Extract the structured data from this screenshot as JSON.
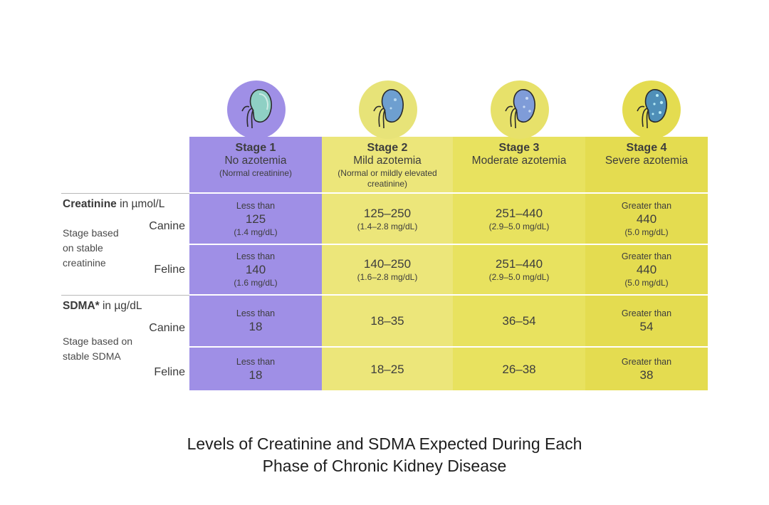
{
  "colors": {
    "stage1": "#9f8fe6",
    "stage2": "#ece67a",
    "stage3": "#e8e25f",
    "stage4": "#e4dc50",
    "stage1_badge": "#9f8fe6",
    "stage2_badge": "#e7e378",
    "stage3_badge": "#e7e16a",
    "stage4_badge": "#e4dc50"
  },
  "icons": [
    "kidney-icon",
    "kidney-icon",
    "kidney-icon",
    "kidney-icon"
  ],
  "chart_data": {
    "type": "table",
    "stages": [
      {
        "title": "Stage 1",
        "subtitle": "No azotemia",
        "note": "(Normal creatinine)"
      },
      {
        "title": "Stage 2",
        "subtitle": "Mild azotemia",
        "note": "(Normal or mildly elevated creatinine)"
      },
      {
        "title": "Stage 3",
        "subtitle": "Moderate azotemia",
        "note": ""
      },
      {
        "title": "Stage 4",
        "subtitle": "Severe azotemia",
        "note": ""
      }
    ],
    "sections": [
      {
        "name": "Creatinine",
        "unit": "in µmol/L",
        "description_lines": [
          "Stage based",
          "on stable",
          "creatinine"
        ],
        "rows": [
          {
            "species": "Canine",
            "cells": [
              {
                "prefix": "Less than",
                "value": "125",
                "mg": "(1.4 mg/dL)"
              },
              {
                "prefix": "",
                "value": "125–250",
                "mg": "(1.4–2.8 mg/dL)"
              },
              {
                "prefix": "",
                "value": "251–440",
                "mg": "(2.9–5.0 mg/dL)"
              },
              {
                "prefix": "Greater than",
                "value": "440",
                "mg": "(5.0 mg/dL)"
              }
            ]
          },
          {
            "species": "Feline",
            "cells": [
              {
                "prefix": "Less than",
                "value": "140",
                "mg": "(1.6 mg/dL)"
              },
              {
                "prefix": "",
                "value": "140–250",
                "mg": "(1.6–2.8 mg/dL)"
              },
              {
                "prefix": "",
                "value": "251–440",
                "mg": "(2.9–5.0 mg/dL)"
              },
              {
                "prefix": "Greater than",
                "value": "440",
                "mg": "(5.0 mg/dL)"
              }
            ]
          }
        ]
      },
      {
        "name": "SDMA*",
        "unit": "in µg/dL",
        "description_lines": [
          "Stage based on",
          "stable SDMA"
        ],
        "rows": [
          {
            "species": "Canine",
            "cells": [
              {
                "prefix": "Less than",
                "value": "18",
                "mg": ""
              },
              {
                "prefix": "",
                "value": "18–35",
                "mg": ""
              },
              {
                "prefix": "",
                "value": "36–54",
                "mg": ""
              },
              {
                "prefix": "Greater than",
                "value": "54",
                "mg": ""
              }
            ]
          },
          {
            "species": "Feline",
            "cells": [
              {
                "prefix": "Less than",
                "value": "18",
                "mg": ""
              },
              {
                "prefix": "",
                "value": "18–25",
                "mg": ""
              },
              {
                "prefix": "",
                "value": "26–38",
                "mg": ""
              },
              {
                "prefix": "Greater than",
                "value": "38",
                "mg": ""
              }
            ]
          }
        ]
      }
    ]
  },
  "caption": {
    "line1": "Levels of Creatinine and SDMA Expected During Each",
    "line2": "Phase of Chronic Kidney Disease"
  }
}
